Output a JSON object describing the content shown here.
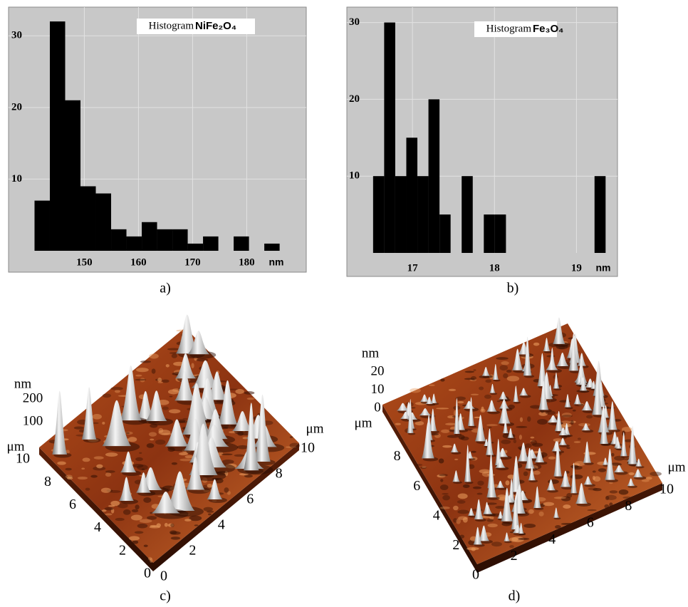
{
  "chart_data": [
    {
      "type": "histogram",
      "title": "Histogram",
      "subtitle": "NiFe₂O₄",
      "x_label": "nm",
      "bins": [
        140.8,
        143.63,
        146.46,
        149.29,
        152.12,
        154.95,
        157.78,
        160.61,
        163.44,
        166.27,
        169.1,
        171.93,
        174.76,
        177.59,
        180.42,
        183.25,
        186.08
      ],
      "counts": [
        7,
        32,
        21,
        9,
        8,
        3,
        2,
        4,
        3,
        3,
        1,
        2,
        0,
        2,
        0,
        1
      ],
      "color": "#000000",
      "xlim": [
        136,
        191
      ],
      "xticks": [
        150,
        160,
        170,
        180
      ],
      "ylim": [
        0,
        34
      ],
      "yticks": [
        10,
        20,
        30
      ],
      "grid": true
    },
    {
      "type": "histogram",
      "title": "Histogram",
      "subtitle": "Fe₃O₄",
      "x_label": "nm",
      "bins": [
        16.52,
        16.655,
        16.79,
        16.925,
        17.06,
        17.195,
        17.33,
        17.465,
        17.6,
        17.735,
        17.87,
        18.005,
        18.14,
        18.275,
        18.41,
        18.545,
        18.68,
        18.815,
        18.95,
        19.085,
        19.22,
        19.355
      ],
      "counts": [
        10,
        30,
        10,
        15,
        10,
        20,
        5,
        0,
        10,
        0,
        5,
        5,
        0,
        0,
        0,
        0,
        0,
        0,
        0,
        0,
        10
      ],
      "color": "#000000",
      "xlim": [
        16.2,
        19.5
      ],
      "xticks": [
        17,
        18,
        19
      ],
      "ylim": [
        0,
        32
      ],
      "yticks": [
        10,
        20,
        30
      ],
      "grid": true
    },
    {
      "type": "surface",
      "z_label": "nm",
      "zlim": [
        0,
        200
      ],
      "zticks": [
        100,
        200
      ],
      "x_label": "μm",
      "xlim": [
        0,
        10
      ],
      "xticks": [
        0,
        2,
        4,
        6,
        8,
        10
      ],
      "y_label": "μm",
      "ylim": [
        0,
        10
      ],
      "yticks": [
        0,
        2,
        4,
        6,
        8,
        10
      ]
    },
    {
      "type": "surface",
      "z_label": "nm",
      "zlim": [
        0,
        20
      ],
      "zticks": [
        0,
        10,
        20
      ],
      "x_label": "μm",
      "xlim": [
        0,
        10
      ],
      "xticks": [
        2,
        4,
        6,
        8,
        10
      ],
      "y_label": "μm",
      "ylim": [
        0,
        10
      ],
      "yticks": [
        0,
        2,
        4,
        6,
        8
      ]
    }
  ],
  "panel_labels": [
    "a)",
    "b)",
    "c)",
    "d)"
  ]
}
